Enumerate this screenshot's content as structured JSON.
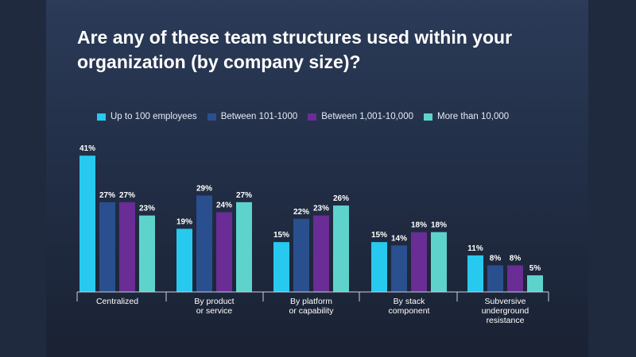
{
  "title": "Are any of these team structures used within your organization (by company size)?",
  "colors": {
    "background": "#1c2538",
    "series": [
      "#27c9ef",
      "#2a4f8f",
      "#6a2c95",
      "#5ed3cc"
    ]
  },
  "chart_data": {
    "type": "bar",
    "title": "Are any of these team structures used within your organization (by company size)?",
    "xlabel": "",
    "ylabel": "",
    "ylim": [
      0,
      45
    ],
    "legend_position": "top",
    "grid": false,
    "categories": [
      [
        "Centralized"
      ],
      [
        "By product",
        "or service"
      ],
      [
        "By platform",
        "or capability"
      ],
      [
        "By stack",
        "component"
      ],
      [
        "Subversive",
        "underground",
        "resistance"
      ]
    ],
    "series": [
      {
        "name": "Up to 100 employees",
        "values": [
          41,
          19,
          15,
          15,
          11
        ]
      },
      {
        "name": "Between 101-1000",
        "values": [
          27,
          29,
          22,
          14,
          8
        ]
      },
      {
        "name": "Between 1,001-10,000",
        "values": [
          27,
          24,
          23,
          18,
          8
        ]
      },
      {
        "name": "More than 10,000",
        "values": [
          23,
          27,
          26,
          18,
          5
        ]
      }
    ],
    "value_suffix": "%"
  }
}
